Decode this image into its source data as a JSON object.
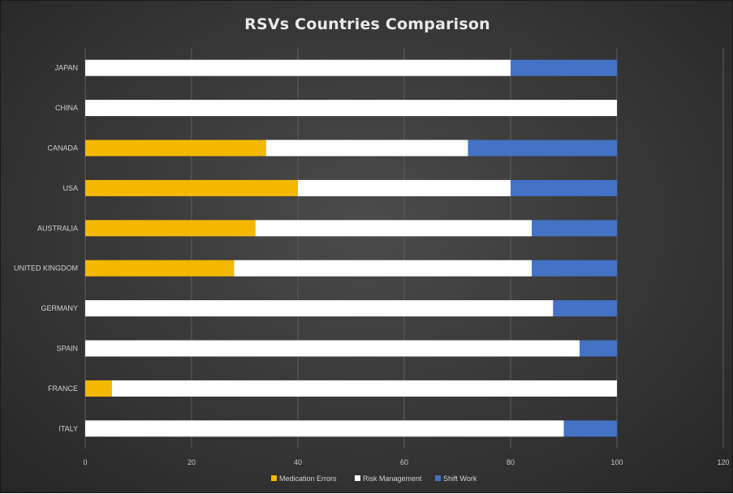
{
  "chart_data": {
    "type": "bar",
    "orientation": "horizontal",
    "stacked": true,
    "title": "RSVs Countries Comparison",
    "xlabel": "",
    "ylabel": "",
    "xlim": [
      0,
      120
    ],
    "x_ticks": [
      0,
      20,
      40,
      60,
      80,
      100,
      120
    ],
    "grid": true,
    "legend_position": "bottom",
    "categories": [
      "JAPAN",
      "CHINA",
      "CANADA",
      "USA",
      "AUSTRALIA",
      "UNITED KINGDOM",
      "GERMANY",
      "SPAIN",
      "FRANCE",
      "ITALY"
    ],
    "series": [
      {
        "name": "Medication Errors",
        "color": "#f5b800",
        "values": [
          0,
          0,
          34,
          40,
          32,
          28,
          0,
          0,
          5,
          0
        ]
      },
      {
        "name": "Risk Management",
        "color": "#ffffff",
        "values": [
          80,
          100,
          38,
          40,
          52,
          56,
          88,
          93,
          95,
          90
        ]
      },
      {
        "name": "Shift Work",
        "color": "#4472c4",
        "values": [
          20,
          0,
          28,
          20,
          16,
          16,
          12,
          7,
          0,
          10
        ]
      }
    ]
  }
}
